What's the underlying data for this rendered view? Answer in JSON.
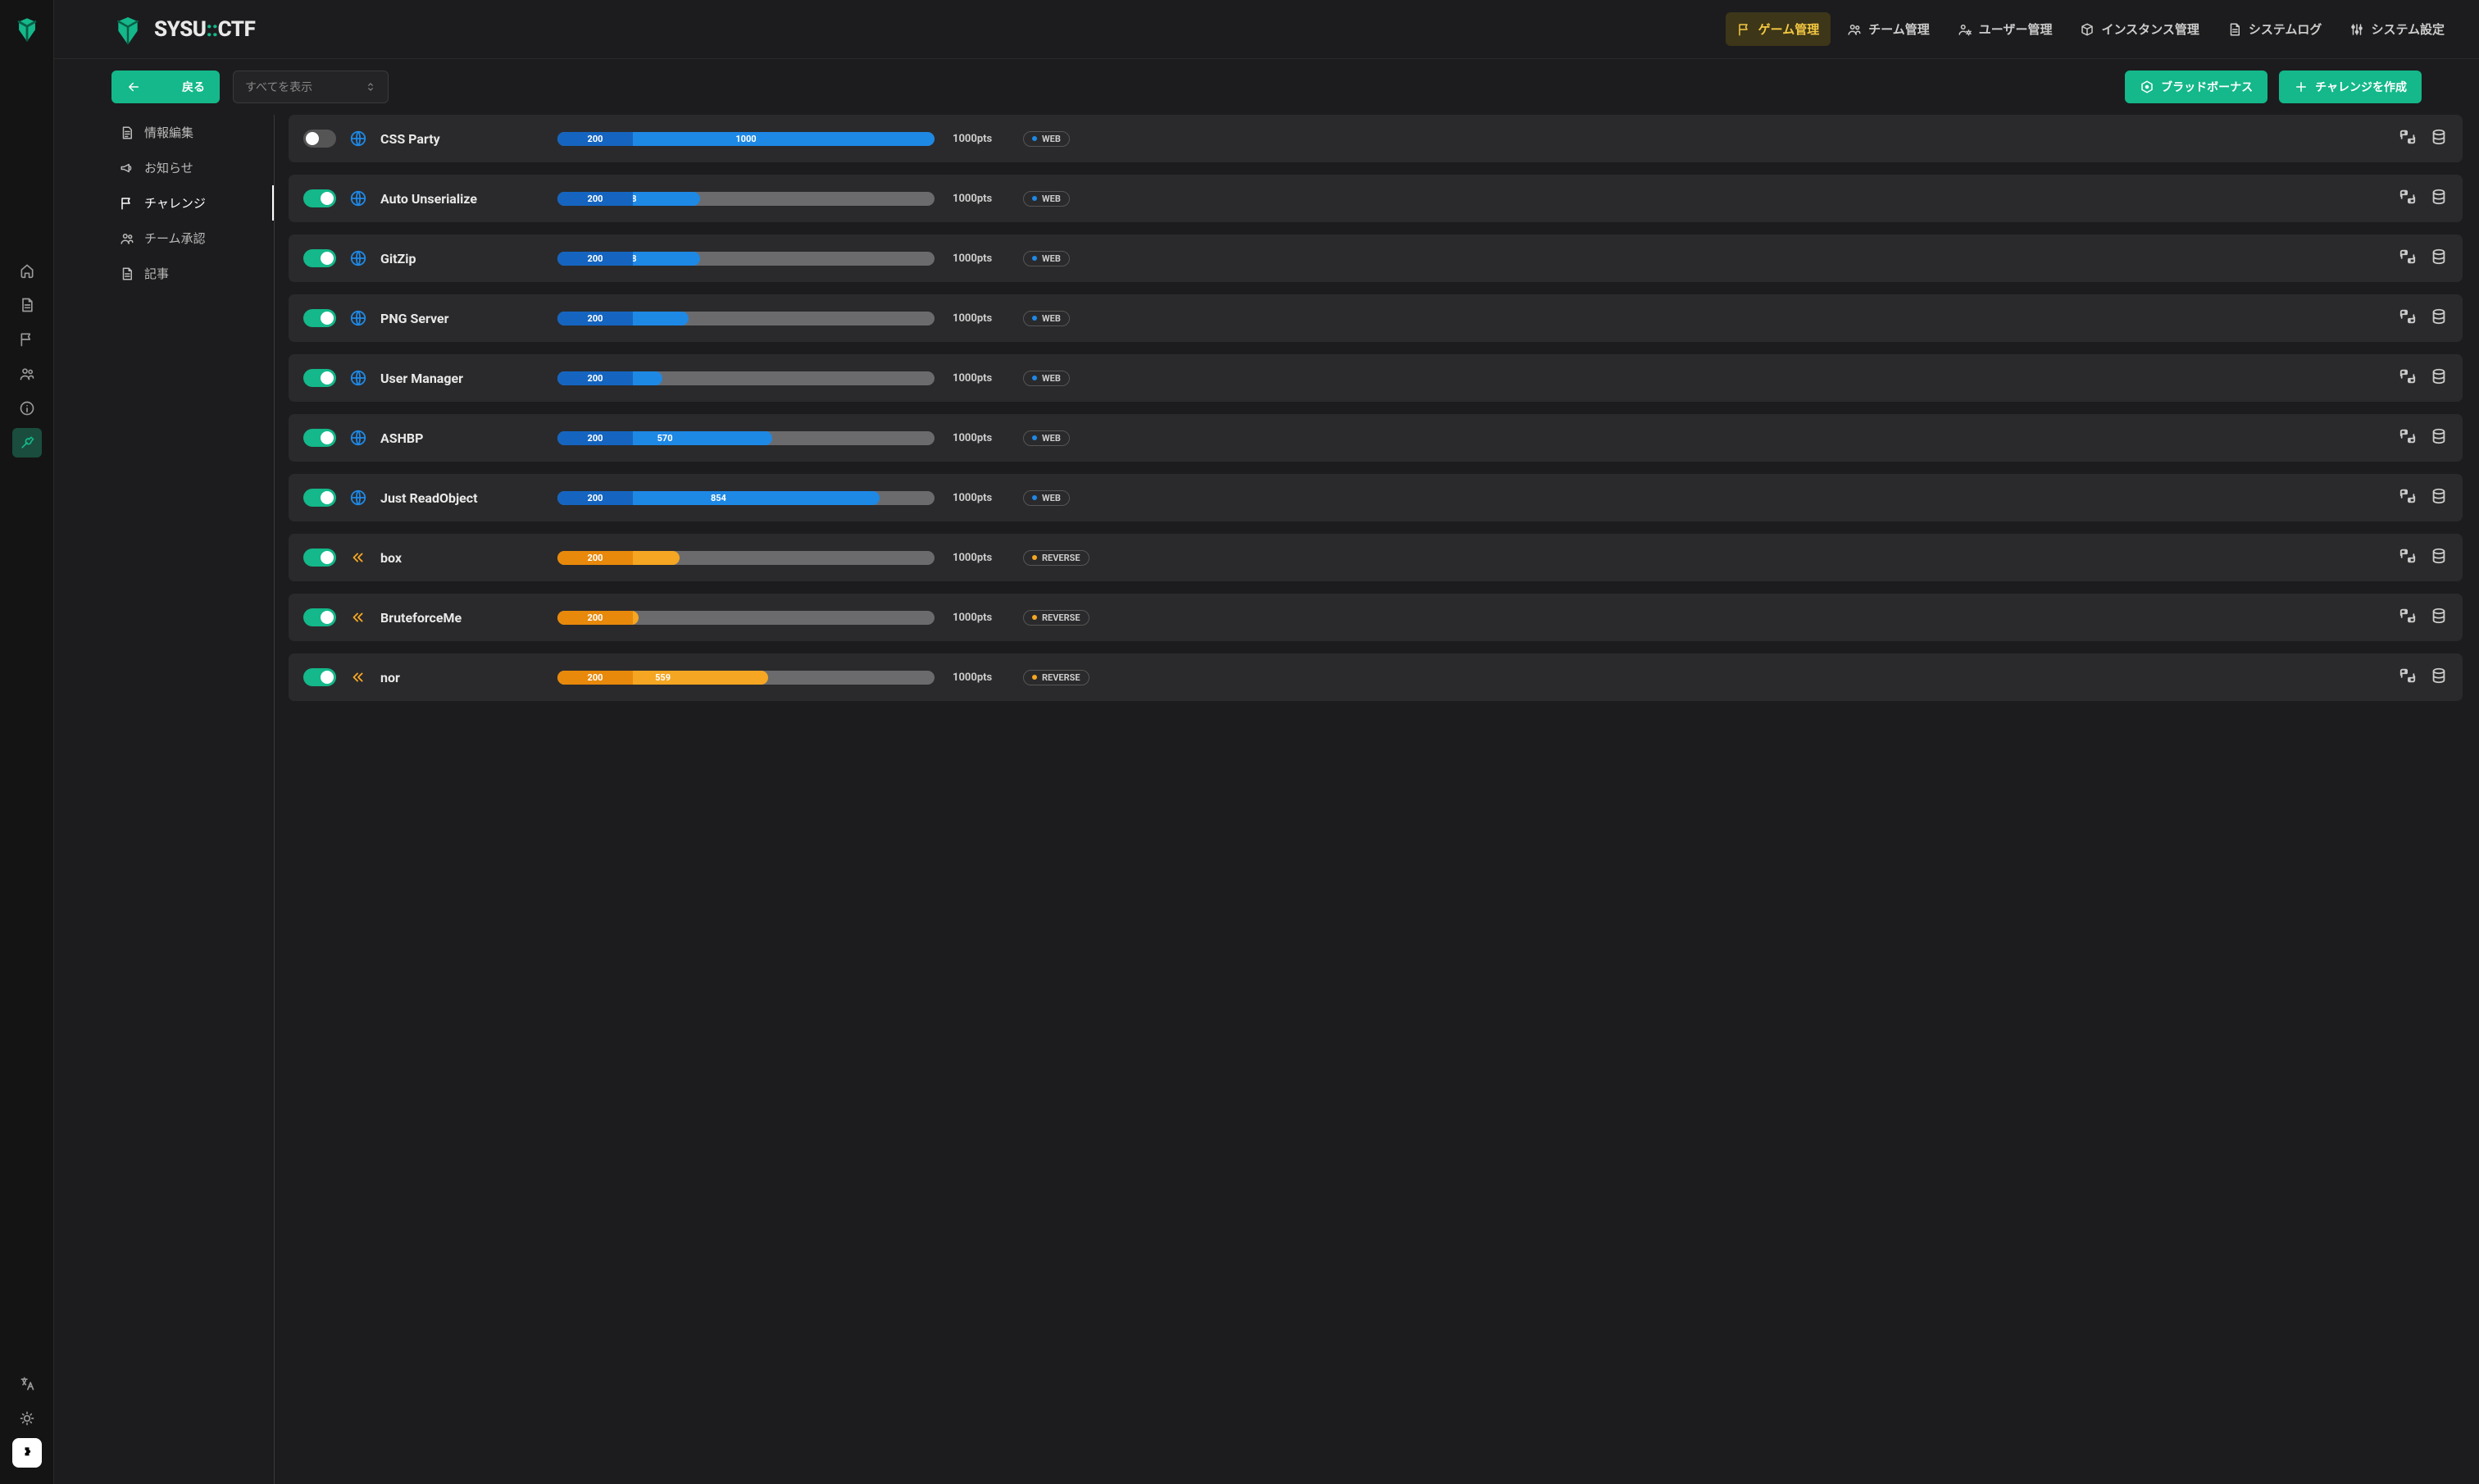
{
  "brand": {
    "name_a": "SYSU",
    "sep": "::",
    "name_b": "CTF"
  },
  "colors": {
    "accent_teal": "#14b88a",
    "accent_yellow": "#f5c842",
    "web_blue": "#1e88e5",
    "web_blue_dark": "#1565c0",
    "reverse_orange": "#f5a623",
    "reverse_orange_dark": "#e8890b",
    "bg_row": "#2a2a2c",
    "bg_bar": "#6b6b6e"
  },
  "topnav": [
    {
      "label": "ゲーム管理",
      "icon": "flag",
      "active": true
    },
    {
      "label": "チーム管理",
      "icon": "group",
      "active": false
    },
    {
      "label": "ユーザー管理",
      "icon": "usercog",
      "active": false
    },
    {
      "label": "インスタンス管理",
      "icon": "cube",
      "active": false
    },
    {
      "label": "システムログ",
      "icon": "doc",
      "active": false
    },
    {
      "label": "システム設定",
      "icon": "sliders",
      "active": false
    }
  ],
  "toolbar": {
    "back_label": "戻る",
    "filter_placeholder": "すべてを表示",
    "blood_bonus_label": "ブラッドボーナス",
    "create_label": "チャレンジを作成"
  },
  "sidebar": [
    {
      "label": "情報編集",
      "icon": "docedit",
      "active": false
    },
    {
      "label": "お知らせ",
      "icon": "megaphone",
      "active": false
    },
    {
      "label": "チャレンジ",
      "icon": "flag",
      "active": true
    },
    {
      "label": "チーム承認",
      "icon": "group",
      "active": false
    },
    {
      "label": "記事",
      "icon": "doc",
      "active": false
    }
  ],
  "bar_max": 1000,
  "bar_min_width_pct": 20,
  "challenges": [
    {
      "enabled": false,
      "name": "CSS Party",
      "min": 200,
      "cur": 1000,
      "pts": "1000pts",
      "category": "WEB",
      "color": "web"
    },
    {
      "enabled": true,
      "name": "Auto Unserialize",
      "min": 200,
      "cur": 378,
      "pts": "1000pts",
      "category": "WEB",
      "color": "web"
    },
    {
      "enabled": true,
      "name": "GitZip",
      "min": 200,
      "cur": 378,
      "pts": "1000pts",
      "category": "WEB",
      "color": "web"
    },
    {
      "enabled": true,
      "name": "PNG Server",
      "min": 200,
      "cur": 347,
      "pts": "1000pts",
      "category": "WEB",
      "color": "web"
    },
    {
      "enabled": true,
      "name": "User Manager",
      "min": 200,
      "cur": 279,
      "pts": "1000pts",
      "category": "WEB",
      "color": "web"
    },
    {
      "enabled": true,
      "name": "ASHBP",
      "min": 200,
      "cur": 570,
      "pts": "1000pts",
      "category": "WEB",
      "color": "web"
    },
    {
      "enabled": true,
      "name": "Just ReadObject",
      "min": 200,
      "cur": 854,
      "pts": "1000pts",
      "category": "WEB",
      "color": "web"
    },
    {
      "enabled": true,
      "name": "box",
      "min": 200,
      "cur": 324,
      "pts": "1000pts",
      "category": "REVERSE",
      "color": "reverse"
    },
    {
      "enabled": true,
      "name": "BruteforceMe",
      "min": 200,
      "cur": 215,
      "pts": "1000pts",
      "category": "REVERSE",
      "color": "reverse"
    },
    {
      "enabled": true,
      "name": "nor",
      "min": 200,
      "cur": 559,
      "pts": "1000pts",
      "category": "REVERSE",
      "color": "reverse"
    }
  ],
  "rail": {
    "middle": [
      {
        "icon": "home",
        "active": false
      },
      {
        "icon": "doc",
        "active": false
      },
      {
        "icon": "flag",
        "active": false
      },
      {
        "icon": "group",
        "active": false
      },
      {
        "icon": "info",
        "active": false
      },
      {
        "icon": "wrench",
        "active": true
      }
    ],
    "bottom": [
      {
        "icon": "translate",
        "white": false
      },
      {
        "icon": "sun",
        "white": false
      },
      {
        "icon": "puzzle",
        "white": true
      }
    ]
  }
}
